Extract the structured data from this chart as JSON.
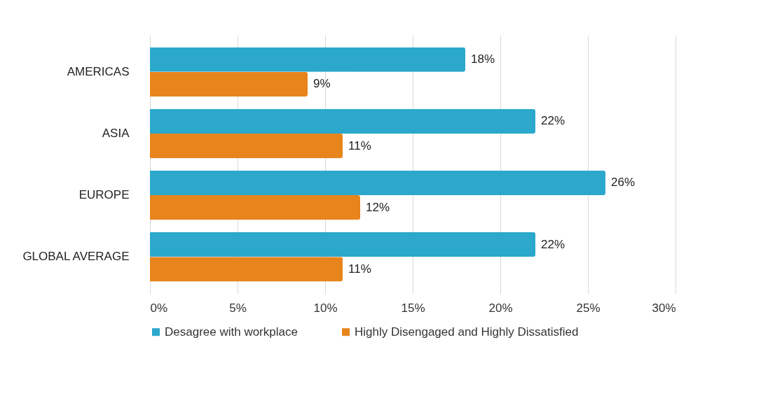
{
  "chart_data": {
    "type": "bar",
    "orientation": "horizontal",
    "categories": [
      "AMERICAS",
      "ASIA",
      "EUROPE",
      "GLOBAL AVERAGE"
    ],
    "series": [
      {
        "name": "Desagree with workplace",
        "color": "#2ba8cc",
        "values": [
          18,
          22,
          26,
          22
        ],
        "value_labels": [
          "18%",
          "22%",
          "26%",
          "22%"
        ]
      },
      {
        "name": "Highly Disengaged and Highly Dissatisfied",
        "color": "#e8841c",
        "values": [
          9,
          11,
          12,
          11
        ],
        "value_labels": [
          "9%",
          "11%",
          "12%",
          "11%"
        ]
      }
    ],
    "xlim": [
      0,
      30
    ],
    "xticks": [
      {
        "value": 0,
        "label": "0%"
      },
      {
        "value": 5,
        "label": "5%"
      },
      {
        "value": 10,
        "label": "10%"
      },
      {
        "value": 15,
        "label": "15%"
      },
      {
        "value": 20,
        "label": "20%"
      },
      {
        "value": 25,
        "label": "25%"
      },
      {
        "value": 30,
        "label": "30%"
      }
    ],
    "grid": "x",
    "legend": "bottom"
  }
}
